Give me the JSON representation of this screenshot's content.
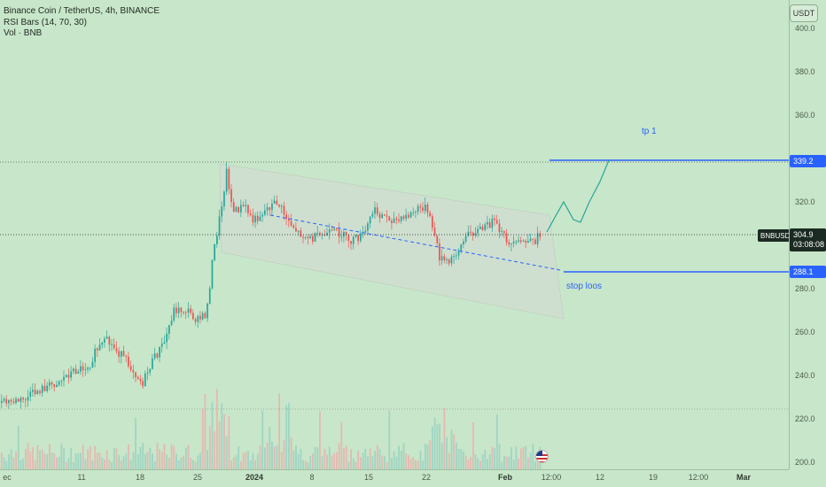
{
  "legend": {
    "title": "Binance Coin / TetherUS, 4h, BINANCE",
    "rsi": "RSI Bars (14, 70, 30)",
    "vol": "Vol · BNB"
  },
  "currency_button": "USDT",
  "price_axis": {
    "ticks": [
      "400.0",
      "380.0",
      "360.0",
      "340.0",
      "320.0",
      "300.0",
      "280.0",
      "260.0",
      "240.0",
      "220.0",
      "200.0"
    ]
  },
  "time_axis": {
    "ticks": [
      "ec",
      "11",
      "18",
      "25",
      "2024",
      "8",
      "15",
      "22",
      "Feb",
      "12:00",
      "12",
      "19",
      "12:00",
      "Mar"
    ]
  },
  "labels": {
    "tp_price": "339.2",
    "stop_price": "288.1",
    "current_price": "304.9",
    "countdown": "03:08:08",
    "symbol": "BNBUSDT",
    "tp_text": "tp 1",
    "stop_text": "stop loos"
  },
  "colors": {
    "background": "#c8e6c9",
    "up": "#26a69a",
    "down": "#ef5350",
    "line_blue": "#2962ff",
    "projection": "#26a69a",
    "channel": "#d3dbd3"
  },
  "chart_data": {
    "type": "candlestick",
    "interval": "4h",
    "symbol": "BNBUSDT",
    "ylim": [
      200,
      410
    ],
    "grid": false,
    "close_path": [
      [
        "Dec 6",
        229
      ],
      [
        "Dec 8",
        230
      ],
      [
        "Dec 10",
        238
      ],
      [
        "Dec 12",
        246
      ],
      [
        "Dec 14",
        257
      ],
      [
        "Dec 15",
        252
      ],
      [
        "Dec 17",
        240
      ],
      [
        "Dec 18",
        237
      ],
      [
        "Dec 20",
        253
      ],
      [
        "Dec 22",
        270
      ],
      [
        "Dec 23",
        273
      ],
      [
        "Dec 25",
        268
      ],
      [
        "Dec 26",
        300
      ],
      [
        "Dec 27",
        333
      ],
      [
        "Dec 28",
        318
      ],
      [
        "Dec 30",
        313
      ],
      [
        "Jan 1",
        318
      ],
      [
        "Jan 3",
        310
      ],
      [
        "Jan 5",
        307
      ],
      [
        "Jan 7",
        303
      ],
      [
        "Jan 9",
        302
      ],
      [
        "Jan 11",
        310
      ],
      [
        "Jan 14",
        317
      ],
      [
        "Jan 17",
        314
      ],
      [
        "Jan 19",
        318
      ],
      [
        "Jan 21",
        313
      ],
      [
        "Jan 23",
        296
      ],
      [
        "Jan 25",
        298
      ],
      [
        "Jan 28",
        308
      ],
      [
        "Jan 30",
        310
      ],
      [
        "Feb 1",
        302
      ],
      [
        "Feb 3",
        304
      ],
      [
        "Feb 4",
        304.9
      ]
    ],
    "current_price": 304.9,
    "drawings": {
      "take_profit": 339.2,
      "stop_loss": 288.1,
      "descending_channel": true,
      "projection": "up to tp 1"
    }
  }
}
